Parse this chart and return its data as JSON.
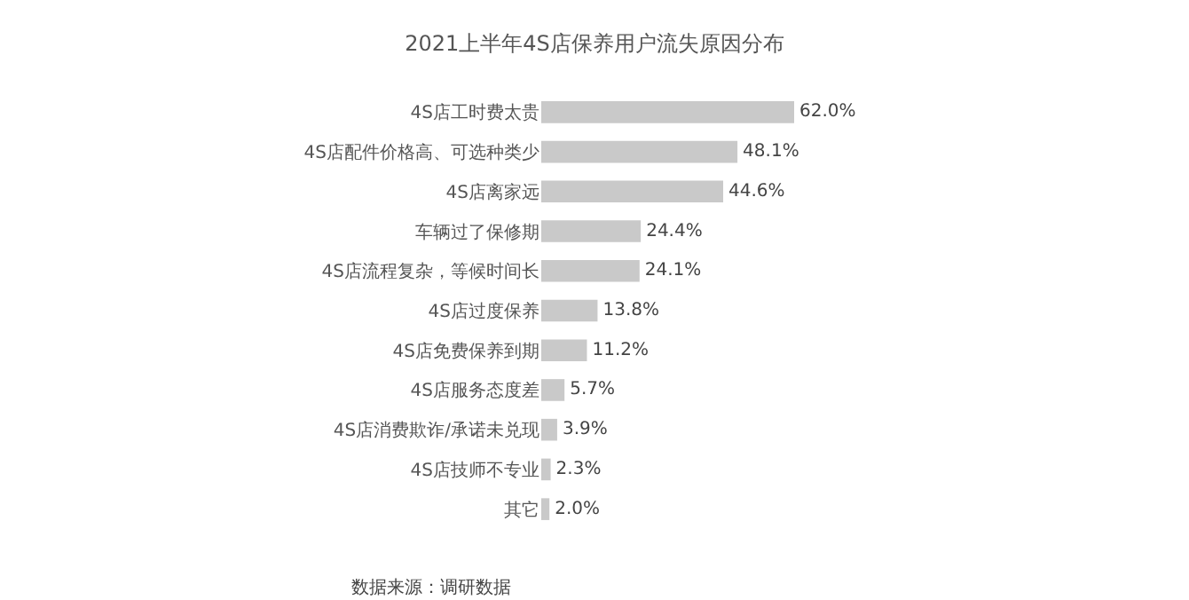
{
  "chart_data": {
    "type": "bar",
    "orientation": "horizontal",
    "title": "2021上半年4S店保养用户流失原因分布",
    "categories": [
      "4S店工时费太贵",
      "4S店配件价格高、可选种类少",
      "4S店离家远",
      "车辆过了保修期",
      "4S店流程复杂，等候时间长",
      "4S店过度保养",
      "4S店免费保养到期",
      "4S店服务态度差",
      "4S店消费欺诈/承诺未兑现",
      "4S店技师不专业",
      "其它"
    ],
    "values": [
      62.0,
      48.1,
      44.6,
      24.4,
      24.1,
      13.8,
      11.2,
      5.7,
      3.9,
      2.3,
      2.0
    ],
    "value_labels": [
      "62.0%",
      "48.1%",
      "44.6%",
      "24.4%",
      "24.1%",
      "13.8%",
      "11.2%",
      "5.7%",
      "3.9%",
      "2.3%",
      "2.0%"
    ],
    "color": "#c9c9c9",
    "annotations": [
      "数据来源：调研数据"
    ]
  }
}
